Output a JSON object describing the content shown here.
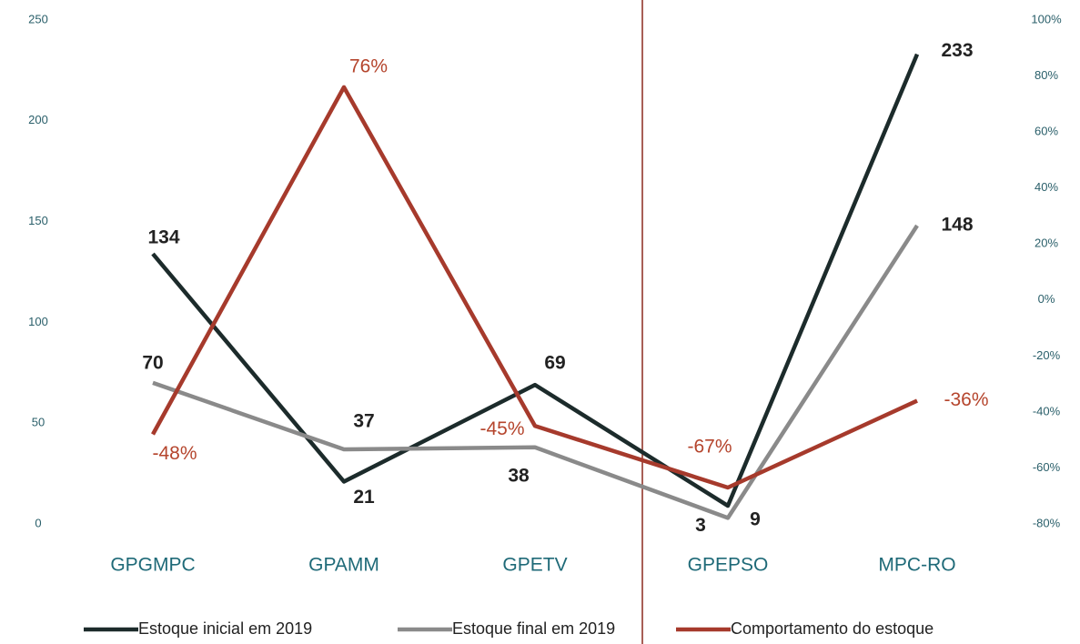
{
  "chart_data": {
    "type": "line",
    "categories": [
      "GPGMPC",
      "GPAMM",
      "GPETV",
      "GPEPSO",
      "MPC-RO"
    ],
    "series": [
      {
        "name": "Estoque inicial em 2019",
        "color": "#1c2b2b",
        "values": [
          134,
          21,
          69,
          9,
          233
        ]
      },
      {
        "name": "Estoque final em 2019",
        "color": "#8a8a8a",
        "values": [
          70,
          37,
          38,
          3,
          148
        ]
      },
      {
        "name": "Comportamento do estoque",
        "color": "#a63a2c",
        "axis": "y2",
        "values": [
          -48,
          76,
          -45,
          -67,
          -36
        ],
        "value_labels": [
          "-48%",
          "76%",
          "-45%",
          "-67%",
          "-36%"
        ]
      }
    ],
    "ylim": [
      0,
      250
    ],
    "yticks": [
      0,
      50,
      100,
      150,
      200,
      250
    ],
    "y2lim": [
      -80,
      100
    ],
    "y2ticks": [
      {
        "value": -80,
        "label": "-80%"
      },
      {
        "value": -60,
        "label": "-60%"
      },
      {
        "value": -40,
        "label": "-40%"
      },
      {
        "value": -20,
        "label": "-20%"
      },
      {
        "value": 0,
        "label": "0%"
      },
      {
        "value": 20,
        "label": "20%"
      },
      {
        "value": 40,
        "label": "40%"
      },
      {
        "value": 60,
        "label": "60%"
      },
      {
        "value": 80,
        "label": "80%"
      },
      {
        "value": 100,
        "label": "100%"
      }
    ],
    "grid": false,
    "legend": "bottom"
  }
}
